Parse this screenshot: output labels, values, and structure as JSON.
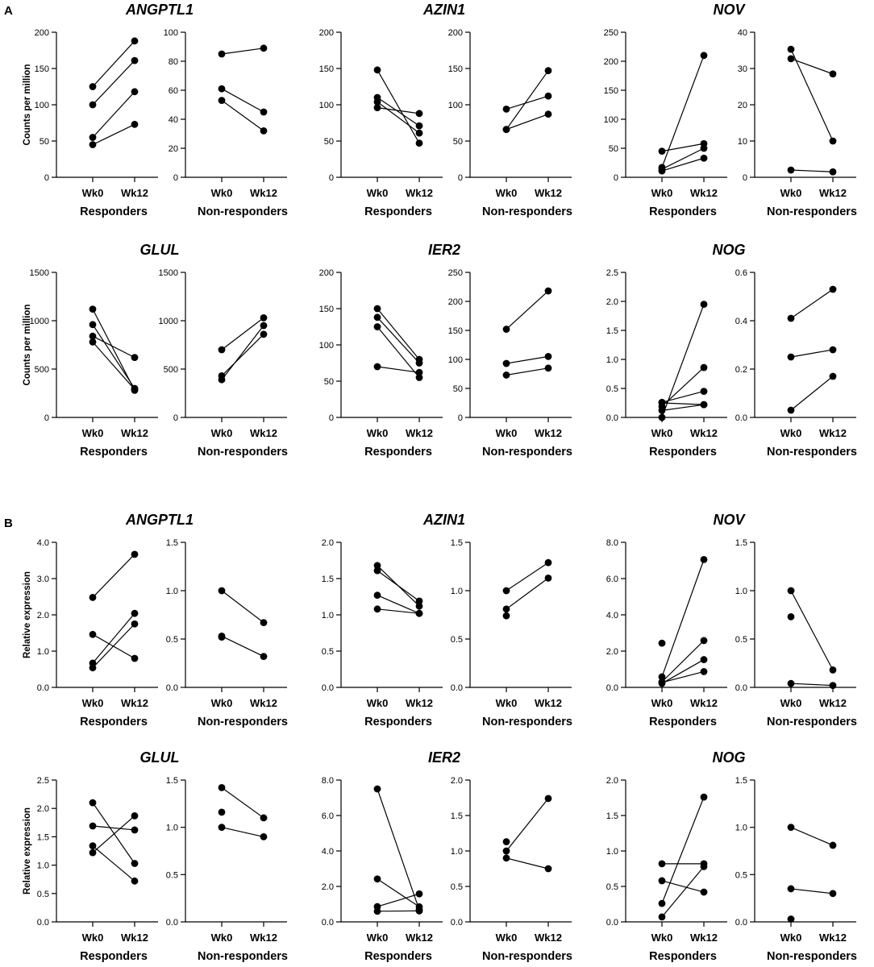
{
  "section_labels": [
    "A",
    "B"
  ],
  "chart_data": [
    {
      "type": "line",
      "section": "A",
      "gene": "ANGPTL1",
      "group": "Responders",
      "ylabel": "Counts per million",
      "ylim": [
        0,
        200
      ],
      "yticks": [
        "0",
        "50",
        "100",
        "150",
        "200"
      ],
      "x": [
        "Wk0",
        "Wk12"
      ],
      "series": [
        [
          125,
          188
        ],
        [
          100,
          161
        ],
        [
          55,
          118
        ],
        [
          45,
          73
        ]
      ]
    },
    {
      "type": "line",
      "section": "A",
      "gene": "ANGPTL1",
      "group": "Non-responders",
      "ylim": [
        0,
        100
      ],
      "yticks": [
        "0",
        "20",
        "40",
        "60",
        "80",
        "100"
      ],
      "x": [
        "Wk0",
        "Wk12"
      ],
      "series": [
        [
          85,
          89
        ],
        [
          61,
          45
        ],
        [
          53,
          32
        ]
      ]
    },
    {
      "type": "line",
      "section": "A",
      "gene": "AZIN1",
      "group": "Responders",
      "ylim": [
        0,
        200
      ],
      "yticks": [
        "0",
        "50",
        "100",
        "150",
        "200"
      ],
      "x": [
        "Wk0",
        "Wk12"
      ],
      "series": [
        [
          148,
          47
        ],
        [
          110,
          71
        ],
        [
          104,
          61
        ],
        [
          96,
          88
        ]
      ]
    },
    {
      "type": "line",
      "section": "A",
      "gene": "AZIN1",
      "group": "Non-responders",
      "ylim": [
        0,
        200
      ],
      "yticks": [
        "0",
        "50",
        "100",
        "150",
        "200"
      ],
      "x": [
        "Wk0",
        "Wk12"
      ],
      "series": [
        [
          94,
          112
        ],
        [
          66,
          147
        ],
        [
          66,
          87
        ]
      ]
    },
    {
      "type": "line",
      "section": "A",
      "gene": "NOV",
      "group": "Responders",
      "ylim": [
        0,
        250
      ],
      "yticks": [
        "0",
        "50",
        "100",
        "150",
        "200",
        "250"
      ],
      "x": [
        "Wk0",
        "Wk12"
      ],
      "series": [
        [
          45,
          58
        ],
        [
          17,
          210
        ],
        [
          14,
          50
        ],
        [
          11,
          33
        ]
      ]
    },
    {
      "type": "line",
      "section": "A",
      "gene": "NOV",
      "group": "Non-responders",
      "ylim": [
        0,
        40
      ],
      "yticks": [
        "0",
        "10",
        "20",
        "30",
        "40"
      ],
      "x": [
        "Wk0",
        "Wk12"
      ],
      "series": [
        [
          35.3,
          10
        ],
        [
          32.7,
          28.5
        ],
        [
          2,
          1.5
        ]
      ]
    },
    {
      "type": "line",
      "section": "A",
      "gene": "GLUL",
      "group": "Responders",
      "ylabel": "Counts per million",
      "ylim": [
        0,
        1500
      ],
      "yticks": [
        "0",
        "500",
        "1000",
        "1500"
      ],
      "x": [
        "Wk0",
        "Wk12"
      ],
      "series": [
        [
          1120,
          280
        ],
        [
          960,
          300
        ],
        [
          840,
          620
        ],
        [
          780,
          290
        ]
      ]
    },
    {
      "type": "line",
      "section": "A",
      "gene": "GLUL",
      "group": "Non-responders",
      "ylim": [
        0,
        1500
      ],
      "yticks": [
        "0",
        "500",
        "1000",
        "1500"
      ],
      "x": [
        "Wk0",
        "Wk12"
      ],
      "series": [
        [
          700,
          1030
        ],
        [
          430,
          860
        ],
        [
          390,
          950
        ]
      ]
    },
    {
      "type": "line",
      "section": "A",
      "gene": "IER2",
      "group": "Responders",
      "ylim": [
        0,
        200
      ],
      "yticks": [
        "0",
        "50",
        "100",
        "150",
        "200"
      ],
      "x": [
        "Wk0",
        "Wk12"
      ],
      "series": [
        [
          150,
          80
        ],
        [
          138,
          75
        ],
        [
          125,
          55
        ],
        [
          70,
          62
        ]
      ]
    },
    {
      "type": "line",
      "section": "A",
      "gene": "IER2",
      "group": "Non-responders",
      "ylim": [
        0,
        250
      ],
      "yticks": [
        "0",
        "50",
        "100",
        "150",
        "200",
        "250"
      ],
      "x": [
        "Wk0",
        "Wk12"
      ],
      "series": [
        [
          152,
          218
        ],
        [
          93,
          105
        ],
        [
          73,
          85
        ]
      ]
    },
    {
      "type": "line",
      "section": "A",
      "gene": "NOG",
      "group": "Responders",
      "ylim": [
        0,
        2.5
      ],
      "yticks": [
        "0.0",
        "0.5",
        "1.0",
        "1.5",
        "2.0",
        "2.5"
      ],
      "x": [
        "Wk0",
        "Wk12"
      ],
      "series": [
        [
          0.26,
          0.45
        ],
        [
          0.25,
          0.22
        ],
        [
          0.19,
          0.86
        ],
        [
          0.12,
          0.22
        ],
        [
          0.0,
          1.95
        ]
      ]
    },
    {
      "type": "line",
      "section": "A",
      "gene": "NOG",
      "group": "Non-responders",
      "ylim": [
        0,
        0.6
      ],
      "yticks": [
        "0.0",
        "0.2",
        "0.4",
        "0.6"
      ],
      "x": [
        "Wk0",
        "Wk12"
      ],
      "series": [
        [
          0.41,
          0.53
        ],
        [
          0.25,
          0.28
        ],
        [
          0.03,
          0.17
        ]
      ]
    },
    {
      "type": "line",
      "section": "B",
      "gene": "ANGPTL1",
      "group": "Responders",
      "ylabel": "Relative expression",
      "ylim": [
        0,
        4
      ],
      "yticks": [
        "0.0",
        "1.0",
        "2.0",
        "3.0",
        "4.0"
      ],
      "x": [
        "Wk0",
        "Wk12"
      ],
      "series": [
        [
          2.48,
          3.67
        ],
        [
          1.46,
          0.8
        ],
        [
          0.67,
          2.04
        ],
        [
          0.54,
          1.75
        ]
      ]
    },
    {
      "type": "line",
      "section": "B",
      "gene": "ANGPTL1",
      "group": "Non-responders",
      "ylim": [
        0,
        1.5
      ],
      "yticks": [
        "0.0",
        "0.5",
        "1.0",
        "1.5"
      ],
      "x": [
        "Wk0",
        "Wk12"
      ],
      "series": [
        [
          1.0,
          0.67
        ],
        [
          0.53,
          0.32
        ],
        [
          0.52,
          null
        ]
      ]
    },
    {
      "type": "line",
      "section": "B",
      "gene": "AZIN1",
      "group": "Responders",
      "ylim": [
        0,
        2
      ],
      "yticks": [
        "0.0",
        "0.5",
        "1.0",
        "1.5",
        "2.0"
      ],
      "x": [
        "Wk0",
        "Wk12"
      ],
      "series": [
        [
          1.68,
          1.12
        ],
        [
          1.61,
          1.19
        ],
        [
          1.27,
          1.02
        ],
        [
          1.08,
          1.02
        ]
      ]
    },
    {
      "type": "line",
      "section": "B",
      "gene": "AZIN1",
      "group": "Non-responders",
      "ylim": [
        0,
        1.5
      ],
      "yticks": [
        "0.0",
        "0.5",
        "1.0",
        "1.5"
      ],
      "x": [
        "Wk0",
        "Wk12"
      ],
      "series": [
        [
          1.0,
          1.29
        ],
        [
          0.81,
          1.13
        ],
        [
          0.74,
          null
        ]
      ]
    },
    {
      "type": "line",
      "section": "B",
      "gene": "NOV",
      "group": "Responders",
      "ylim": [
        0,
        8
      ],
      "yticks": [
        "0.0",
        "2.0",
        "4.0",
        "6.0",
        "8.0"
      ],
      "x": [
        "Wk0",
        "Wk12"
      ],
      "series": [
        [
          2.44,
          null
        ],
        [
          0.58,
          7.05
        ],
        [
          0.3,
          2.58
        ],
        [
          0.22,
          1.53
        ],
        [
          0.27,
          0.87
        ]
      ]
    },
    {
      "type": "line",
      "section": "B",
      "gene": "NOV",
      "group": "Non-responders",
      "ylim": [
        0,
        1.5
      ],
      "yticks": [
        "0.0",
        "0.5",
        "1.0",
        "1.5"
      ],
      "x": [
        "Wk0",
        "Wk12"
      ],
      "series": [
        [
          1.0,
          0.18
        ],
        [
          0.73,
          null
        ],
        [
          0.04,
          0.02
        ]
      ]
    },
    {
      "type": "line",
      "section": "B",
      "gene": "GLUL",
      "group": "Responders",
      "ylabel": "Relative expression",
      "ylim": [
        0,
        2.5
      ],
      "yticks": [
        "0.0",
        "0.5",
        "1.0",
        "1.5",
        "2.0",
        "2.5"
      ],
      "x": [
        "Wk0",
        "Wk12"
      ],
      "series": [
        [
          2.1,
          1.03
        ],
        [
          1.69,
          1.62
        ],
        [
          1.34,
          0.72
        ],
        [
          1.22,
          1.87
        ]
      ]
    },
    {
      "type": "line",
      "section": "B",
      "gene": "GLUL",
      "group": "Non-responders",
      "ylim": [
        0,
        1.5
      ],
      "yticks": [
        "0.0",
        "0.5",
        "1.0",
        "1.5"
      ],
      "x": [
        "Wk0",
        "Wk12"
      ],
      "series": [
        [
          1.42,
          1.1
        ],
        [
          1.16,
          null
        ],
        [
          1.0,
          0.9
        ]
      ]
    },
    {
      "type": "line",
      "section": "B",
      "gene": "IER2",
      "group": "Responders",
      "ylim": [
        0,
        8
      ],
      "yticks": [
        "0.0",
        "2.0",
        "4.0",
        "6.0",
        "8.0"
      ],
      "x": [
        "Wk0",
        "Wk12"
      ],
      "series": [
        [
          7.5,
          0.68
        ],
        [
          2.42,
          0.85
        ],
        [
          0.86,
          1.58
        ],
        [
          0.6,
          0.62
        ]
      ]
    },
    {
      "type": "line",
      "section": "B",
      "gene": "IER2",
      "group": "Non-responders",
      "ylim": [
        0,
        2
      ],
      "yticks": [
        "0.0",
        "0.5",
        "1.0",
        "1.5",
        "2.0"
      ],
      "x": [
        "Wk0",
        "Wk12"
      ],
      "series": [
        [
          1.13,
          null
        ],
        [
          1.0,
          1.74
        ],
        [
          0.9,
          0.75
        ]
      ]
    },
    {
      "type": "line",
      "section": "B",
      "gene": "NOG",
      "group": "Responders",
      "ylim": [
        0,
        2
      ],
      "yticks": [
        "0.0",
        "0.5",
        "1.0",
        "1.5",
        "2.0"
      ],
      "x": [
        "Wk0",
        "Wk12"
      ],
      "series": [
        [
          0.82,
          0.82
        ],
        [
          0.58,
          0.42
        ],
        [
          0.26,
          1.76
        ],
        [
          0.07,
          0.78
        ]
      ]
    },
    {
      "type": "line",
      "section": "B",
      "gene": "NOG",
      "group": "Non-responders",
      "ylim": [
        0,
        1.5
      ],
      "yticks": [
        "0.0",
        "0.5",
        "1.0",
        "1.5"
      ],
      "x": [
        "Wk0",
        "Wk12"
      ],
      "series": [
        [
          1.0,
          0.81
        ],
        [
          0.35,
          0.3
        ],
        [
          0.03,
          null
        ]
      ]
    }
  ]
}
